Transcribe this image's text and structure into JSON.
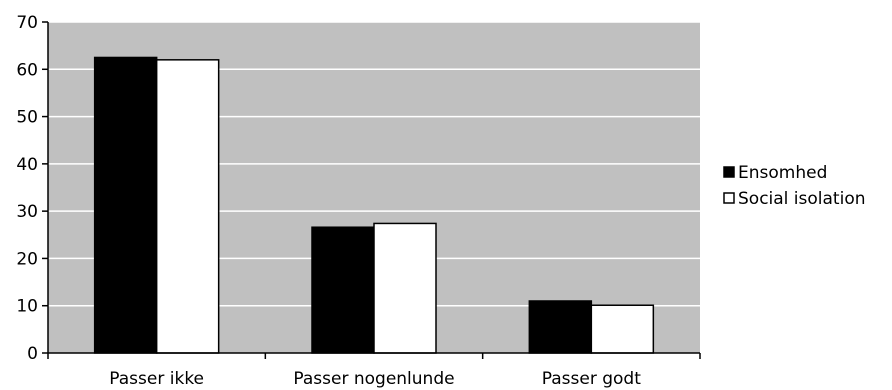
{
  "chart_data": {
    "type": "bar",
    "categories": [
      "Passer ikke",
      "Passer nogenlunde",
      "Passer godt"
    ],
    "series": [
      {
        "name": "Ensomhed",
        "values": [
          62.5,
          26.6,
          11.0
        ],
        "color": "#000000"
      },
      {
        "name": "Social isolation",
        "values": [
          62.0,
          27.4,
          10.1
        ],
        "color": "#ffffff"
      }
    ],
    "ylim": [
      0,
      70
    ],
    "yticks": [
      0,
      10,
      20,
      30,
      40,
      50,
      60,
      70
    ],
    "grid": true,
    "plot_background": "#c0c0c0",
    "legend_position": "right",
    "title": "",
    "xlabel": "",
    "ylabel": ""
  }
}
